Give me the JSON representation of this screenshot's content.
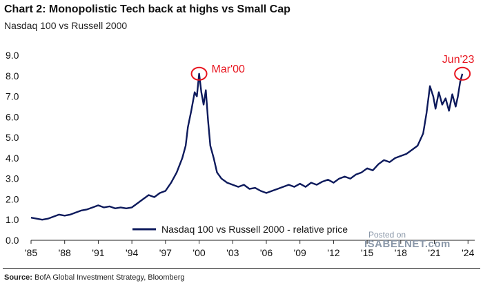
{
  "header": {
    "title": "Chart 2: Monopolistic Tech back at highs vs Small Cap",
    "subtitle": "Nasdaq 100 vs Russell 2000"
  },
  "watermark": {
    "line1": "Posted on",
    "brand": "ISABELNET.com"
  },
  "footer": {
    "source_label": "Source:",
    "source_text": "BofA Global Investment Strategy, Bloomberg"
  },
  "chart_data": {
    "type": "line",
    "title": "Chart 2: Monopolistic Tech back at highs vs Small Cap",
    "subtitle": "Nasdaq 100 vs Russell 2000",
    "xlabel": "",
    "ylabel": "",
    "xlim": [
      1985,
      2024.6
    ],
    "ylim": [
      0,
      9
    ],
    "yticks": [
      "0.0",
      "1.0",
      "2.0",
      "3.0",
      "4.0",
      "5.0",
      "6.0",
      "7.0",
      "8.0",
      "9.0"
    ],
    "xticks": [
      "'85",
      "'88",
      "'91",
      "'94",
      "'97",
      "'00",
      "'03",
      "'06",
      "'09",
      "'12",
      "'15",
      "'18",
      "'21",
      "'24"
    ],
    "grid": false,
    "legend_position": "bottom-center",
    "series": [
      {
        "name": "Nasdaq 100 vs Russell 2000 - relative price",
        "color": "#0d1a5c",
        "x": [
          1985.0,
          1985.5,
          1986.0,
          1986.5,
          1987.0,
          1987.5,
          1988.0,
          1988.5,
          1989.0,
          1989.5,
          1990.0,
          1990.5,
          1991.0,
          1991.5,
          1992.0,
          1992.5,
          1993.0,
          1993.5,
          1994.0,
          1994.5,
          1995.0,
          1995.5,
          1996.0,
          1996.5,
          1997.0,
          1997.5,
          1998.0,
          1998.5,
          1998.8,
          1999.0,
          1999.3,
          1999.6,
          1999.8,
          2000.0,
          2000.2,
          2000.4,
          2000.6,
          2000.8,
          2001.0,
          2001.3,
          2001.6,
          2002.0,
          2002.5,
          2003.0,
          2003.5,
          2004.0,
          2004.5,
          2005.0,
          2005.5,
          2006.0,
          2006.5,
          2007.0,
          2007.5,
          2008.0,
          2008.5,
          2009.0,
          2009.5,
          2010.0,
          2010.5,
          2011.0,
          2011.5,
          2012.0,
          2012.5,
          2013.0,
          2013.5,
          2014.0,
          2014.5,
          2015.0,
          2015.5,
          2016.0,
          2016.5,
          2017.0,
          2017.5,
          2018.0,
          2018.5,
          2019.0,
          2019.5,
          2020.0,
          2020.3,
          2020.6,
          2020.9,
          2021.1,
          2021.4,
          2021.7,
          2022.0,
          2022.3,
          2022.6,
          2022.9,
          2023.1,
          2023.3,
          2023.5
        ],
        "values": [
          1.1,
          1.05,
          1.0,
          1.05,
          1.15,
          1.25,
          1.2,
          1.25,
          1.35,
          1.45,
          1.5,
          1.6,
          1.7,
          1.6,
          1.65,
          1.55,
          1.6,
          1.55,
          1.6,
          1.8,
          2.0,
          2.2,
          2.1,
          2.3,
          2.4,
          2.8,
          3.3,
          4.0,
          4.6,
          5.5,
          6.3,
          7.2,
          7.0,
          8.1,
          7.2,
          6.6,
          7.3,
          5.8,
          4.6,
          4.0,
          3.3,
          3.0,
          2.8,
          2.7,
          2.6,
          2.7,
          2.5,
          2.55,
          2.4,
          2.3,
          2.4,
          2.5,
          2.6,
          2.7,
          2.6,
          2.75,
          2.6,
          2.8,
          2.7,
          2.85,
          2.95,
          2.8,
          3.0,
          3.1,
          3.0,
          3.2,
          3.3,
          3.5,
          3.4,
          3.7,
          3.9,
          3.8,
          4.0,
          4.1,
          4.2,
          4.4,
          4.6,
          5.2,
          6.2,
          7.5,
          7.0,
          6.4,
          7.2,
          6.6,
          6.9,
          6.3,
          7.1,
          6.5,
          7.0,
          7.7,
          8.1
        ]
      }
    ],
    "annotations": [
      {
        "label": "Mar'00",
        "x": 2000.0,
        "y": 8.1
      },
      {
        "label": "Jun'23",
        "x": 2023.5,
        "y": 8.1
      }
    ]
  }
}
